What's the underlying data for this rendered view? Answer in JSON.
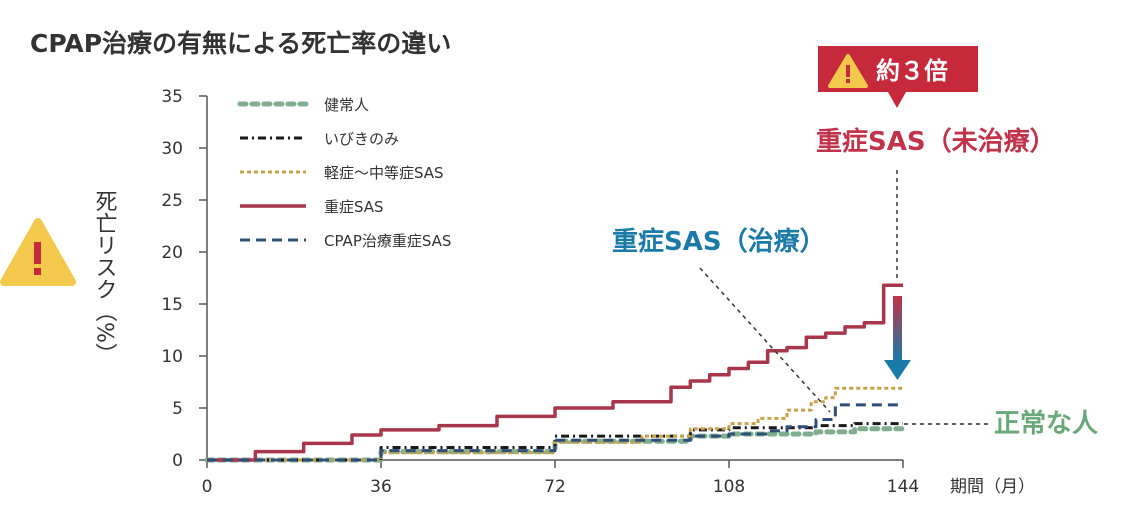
{
  "chart_data": {
    "type": "line",
    "title": "CPAP治療の有無による死亡率の違い",
    "ylabel": "死亡リスク（%）",
    "xlabel": "期間（月）",
    "xlim": [
      0,
      144
    ],
    "ylim": [
      0,
      35
    ],
    "xticks": [
      "0",
      "36",
      "72",
      "108",
      "144"
    ],
    "yticks": [
      "0",
      "5",
      "10",
      "15",
      "20",
      "25",
      "30",
      "35"
    ],
    "grid": false,
    "legend_position": "top-left",
    "series": [
      {
        "name": "健常人",
        "style": "dotted-thick",
        "color": "#7fae8f",
        "x": [
          0,
          36,
          72,
          100,
          108,
          126,
          134,
          144
        ],
        "y": [
          0,
          0.8,
          1.8,
          2.3,
          2.5,
          2.7,
          3.0,
          3.2
        ]
      },
      {
        "name": "いびきのみ",
        "style": "dash-dot",
        "color": "#1a1a1a",
        "x": [
          0,
          36,
          72,
          100,
          108,
          126,
          134,
          144
        ],
        "y": [
          0,
          1.2,
          2.3,
          2.9,
          3.1,
          3.3,
          3.5,
          3.5
        ]
      },
      {
        "name": "軽症〜中等症SAS",
        "style": "dotted",
        "color": "#c8a24a",
        "x": [
          0,
          36,
          72,
          90,
          100,
          108,
          114,
          120,
          125,
          128,
          130,
          144
        ],
        "y": [
          0,
          0.7,
          1.7,
          2.3,
          3.0,
          3.5,
          4.0,
          4.8,
          5.6,
          6.0,
          6.9,
          6.9
        ]
      },
      {
        "name": "重症SAS",
        "style": "solid",
        "color": "#a8374c",
        "x": [
          0,
          10,
          20,
          30,
          36,
          48,
          60,
          72,
          84,
          96,
          100,
          104,
          108,
          112,
          116,
          120,
          124,
          128,
          132,
          136,
          140,
          144
        ],
        "y": [
          0,
          0.8,
          1.6,
          2.4,
          2.9,
          3.3,
          4.2,
          5.0,
          5.6,
          7.0,
          7.6,
          8.2,
          8.8,
          9.4,
          10.5,
          10.8,
          11.8,
          12.2,
          12.8,
          13.2,
          16.8,
          16.8
        ]
      },
      {
        "name": "CPAP治療重症SAS",
        "style": "dashed",
        "color": "#2f4f78",
        "x": [
          0,
          36,
          72,
          100,
          108,
          116,
          120,
          126,
          130,
          144
        ],
        "y": [
          0,
          0.9,
          1.9,
          2.3,
          2.5,
          2.8,
          3.2,
          3.9,
          5.3,
          5.3
        ]
      }
    ],
    "annotations": {
      "badge": "約３倍",
      "severe_untreated": "重症SAS（未治療）",
      "severe_treated": "重症SAS（治療）",
      "normal": "正常な人"
    },
    "colors": {
      "severe": "#c0334a",
      "treated": "#1a7aa8",
      "normal": "#6aa878",
      "warning_yellow": "#f2c94c",
      "warning_red": "#c62a3a"
    }
  }
}
